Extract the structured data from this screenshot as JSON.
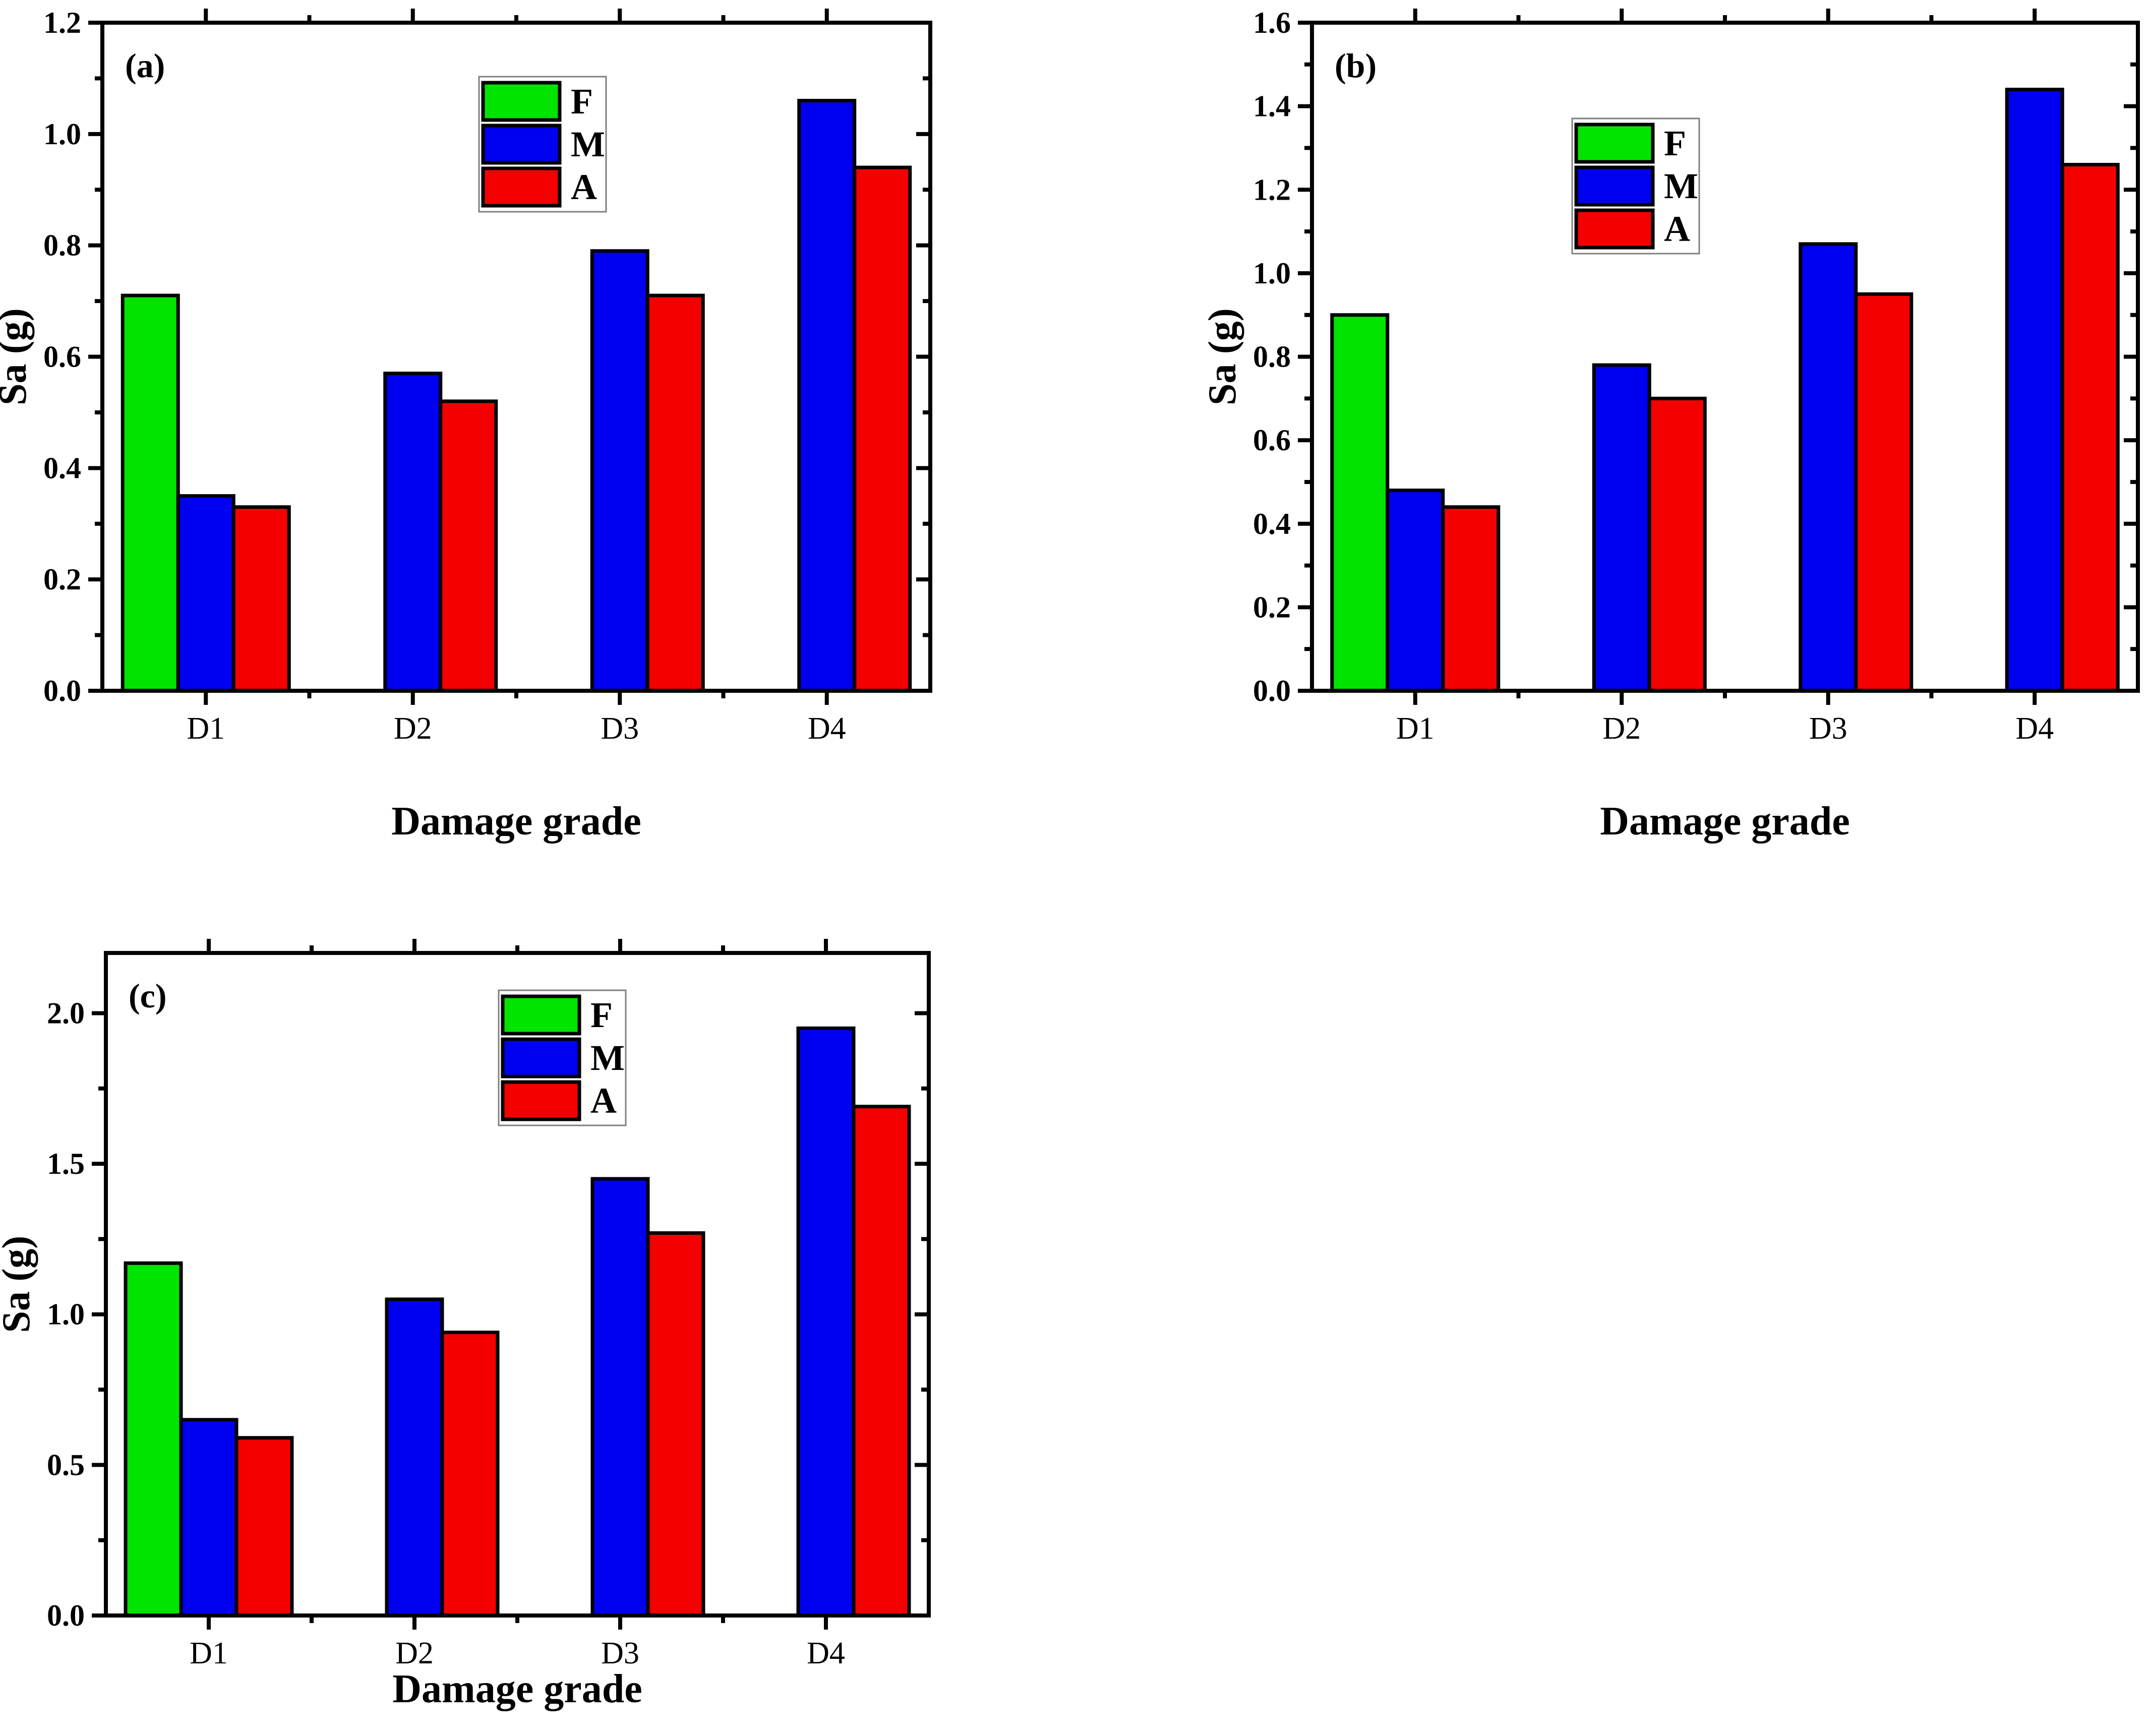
{
  "figure": {
    "background": "#ffffff",
    "palette": {
      "F": "#00e400",
      "M": "#0000f0",
      "A": "#f40000",
      "axis": "#000000",
      "legend_border": "#7f7f7f",
      "legend_fill": "#ffffff"
    }
  },
  "chart_data": [
    {
      "type": "bar",
      "panel_label": "(a)",
      "title": "",
      "xlabel": "Damage grade",
      "ylabel": "Sa (g)",
      "categories": [
        "D1",
        "D2",
        "D3",
        "D4"
      ],
      "series": [
        {
          "name": "F",
          "values": [
            0.71,
            null,
            null,
            null
          ]
        },
        {
          "name": "M",
          "values": [
            0.35,
            0.57,
            0.79,
            1.06
          ]
        },
        {
          "name": "A",
          "values": [
            0.33,
            0.52,
            0.71,
            0.94
          ]
        }
      ],
      "ylim": [
        0,
        1.2
      ],
      "ytick_step": 0.2,
      "yminor_step": 0.1,
      "ytick_labels": [
        "0.0",
        "0.2",
        "0.4",
        "0.6",
        "0.8",
        "1.0",
        "1.2"
      ],
      "legend_entries": [
        "F",
        "M",
        "A"
      ],
      "legend_position": "inside-top-center",
      "grid": false
    },
    {
      "type": "bar",
      "panel_label": "(b)",
      "title": "",
      "xlabel": "Damage grade",
      "ylabel": "Sa (g)",
      "categories": [
        "D1",
        "D2",
        "D3",
        "D4"
      ],
      "series": [
        {
          "name": "F",
          "values": [
            0.9,
            null,
            null,
            null
          ]
        },
        {
          "name": "M",
          "values": [
            0.48,
            0.78,
            1.07,
            1.44
          ]
        },
        {
          "name": "A",
          "values": [
            0.44,
            0.7,
            0.95,
            1.26
          ]
        }
      ],
      "ylim": [
        0,
        1.6
      ],
      "ytick_step": 0.2,
      "yminor_step": 0.1,
      "ytick_labels": [
        "0.0",
        "0.2",
        "0.4",
        "0.6",
        "0.8",
        "1.0",
        "1.2",
        "1.4",
        "1.6"
      ],
      "legend_entries": [
        "F",
        "M",
        "A"
      ],
      "legend_position": "inside-top-center",
      "grid": false
    },
    {
      "type": "bar",
      "panel_label": "(c)",
      "title": "",
      "xlabel": "Damage grade",
      "ylabel": "Sa (g)",
      "categories": [
        "D1",
        "D2",
        "D3",
        "D4"
      ],
      "series": [
        {
          "name": "F",
          "values": [
            1.17,
            null,
            null,
            null
          ]
        },
        {
          "name": "M",
          "values": [
            0.65,
            1.05,
            1.45,
            1.95
          ]
        },
        {
          "name": "A",
          "values": [
            0.59,
            0.94,
            1.27,
            1.69
          ]
        }
      ],
      "ylim": [
        0,
        2.2
      ],
      "ytick_step": 0.5,
      "yminor_step": 0.25,
      "ytick_labels": [
        "0.0",
        "0.5",
        "1.0",
        "1.5",
        "2.0"
      ],
      "legend_entries": [
        "F",
        "M",
        "A"
      ],
      "legend_position": "inside-top-center",
      "grid": false
    }
  ]
}
